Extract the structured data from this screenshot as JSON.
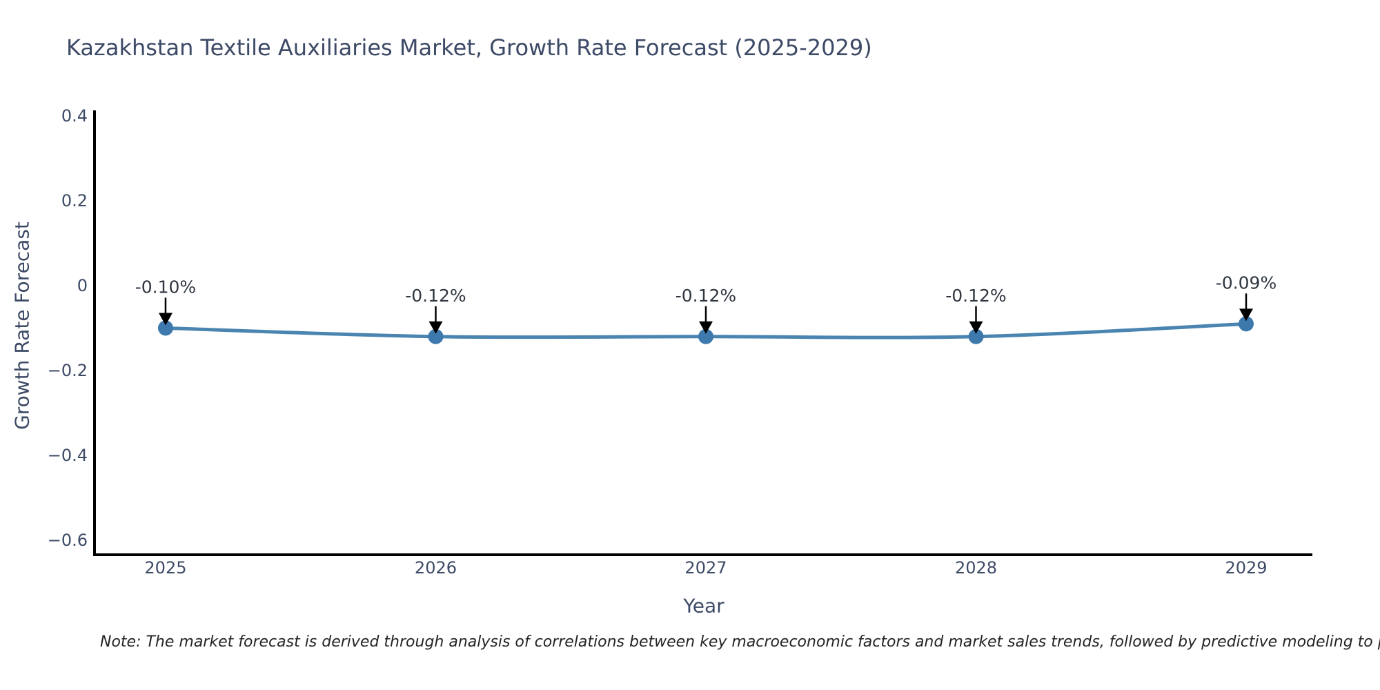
{
  "chart_data": {
    "type": "line",
    "title": "Kazakhstan Textile Auxiliaries Market, Growth Rate Forecast (2025-2029)",
    "xlabel": "Year",
    "ylabel": "Growth Rate Forecast",
    "x": [
      2025,
      2026,
      2027,
      2028,
      2029
    ],
    "series": [
      {
        "name": "Growth Rate Forecast",
        "values": [
          -0.1,
          -0.12,
          -0.12,
          -0.12,
          -0.09
        ],
        "point_labels": [
          "-0.10%",
          "-0.12%",
          "-0.12%",
          "-0.12%",
          "-0.09%"
        ]
      }
    ],
    "yticks": [
      0.4,
      0.2,
      0,
      -0.2,
      -0.4,
      -0.6
    ],
    "ytick_labels": [
      "0.4",
      "0.2",
      "0",
      "−0.2",
      "−0.4",
      "−0.6"
    ],
    "xtick_labels": [
      "2025",
      "2026",
      "2027",
      "2028",
      "2029"
    ],
    "ylim": [
      -0.631,
      0.413
    ],
    "xlim": [
      2024.737,
      2029.235
    ],
    "grid": false,
    "legend_position": "none",
    "colors": {
      "line": "#4a84b0",
      "marker": "#3e79ad",
      "arrow": "#000000",
      "annotation_text": "#2f3640",
      "axis_text": "#3d4a66",
      "spine": "#000000",
      "background": "#ffffff"
    }
  },
  "note": "Note: The market forecast is derived through analysis of correlations between key macroeconomic factors and market sales trends, followed by predictive modeling to project future sa"
}
